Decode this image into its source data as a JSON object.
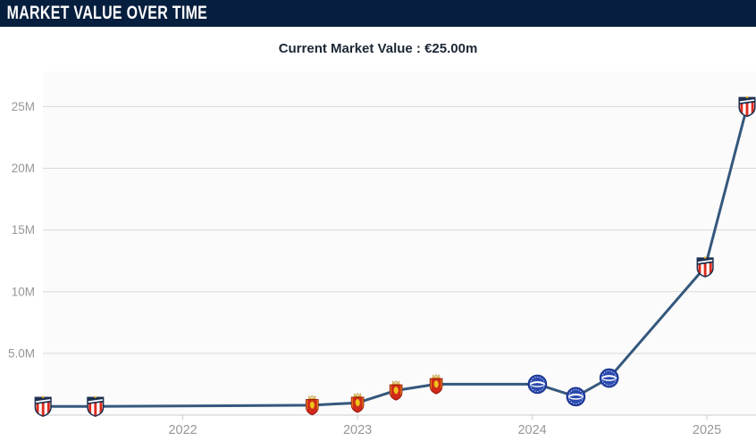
{
  "header": {
    "title": "MARKET VALUE OVER TIME"
  },
  "subtitle": {
    "text": "Current Market Value : €25.00m"
  },
  "chart_data": {
    "type": "line",
    "title": "Market Value Over Time",
    "subtitle": "Current Market Value : €25.00m",
    "y_unit": "€ million",
    "grid": "horizontal",
    "legend": "none",
    "xlim": [
      2021.199,
      2025.281
    ],
    "ylim": [
      0,
      27.85
    ],
    "x_ticks": [
      {
        "value": 2022,
        "label": "2022"
      },
      {
        "value": 2023,
        "label": "2023"
      },
      {
        "value": 2024,
        "label": "2024"
      },
      {
        "value": 2025,
        "label": "2025"
      }
    ],
    "y_ticks": [
      {
        "value": 5,
        "label": "5.0M"
      },
      {
        "value": 10,
        "label": "10M"
      },
      {
        "value": 15,
        "label": "15M"
      },
      {
        "value": 20,
        "label": "20M"
      },
      {
        "value": 25,
        "label": "25M"
      }
    ],
    "series": [
      {
        "name": "Market value",
        "marker": "club-crest",
        "points": [
          {
            "x": 2021.2,
            "y": 0.7,
            "club": "atletico-madrid"
          },
          {
            "x": 2021.5,
            "y": 0.7,
            "club": "atletico-madrid"
          },
          {
            "x": 2022.74,
            "y": 0.8,
            "club": "real-zaragoza"
          },
          {
            "x": 2023.0,
            "y": 1.0,
            "club": "real-zaragoza"
          },
          {
            "x": 2023.22,
            "y": 2.0,
            "club": "real-zaragoza"
          },
          {
            "x": 2023.45,
            "y": 2.5,
            "club": "real-zaragoza"
          },
          {
            "x": 2024.03,
            "y": 2.5,
            "club": "deportivo-alaves"
          },
          {
            "x": 2024.25,
            "y": 1.5,
            "club": "deportivo-alaves"
          },
          {
            "x": 2024.44,
            "y": 3.0,
            "club": "deportivo-alaves"
          },
          {
            "x": 2024.99,
            "y": 12.0,
            "club": "atletico-madrid"
          },
          {
            "x": 2025.23,
            "y": 25.0,
            "club": "atletico-madrid"
          }
        ]
      }
    ],
    "colors": {
      "header_bg": "#071f3e",
      "header_text": "#ffffff",
      "subtitle_text": "#1c2735",
      "line": "#35587d",
      "grid": "#d9d9d9",
      "axis": "#cccccc",
      "tick_label": "#979797",
      "plot_bg": "#fbfbfb"
    }
  }
}
